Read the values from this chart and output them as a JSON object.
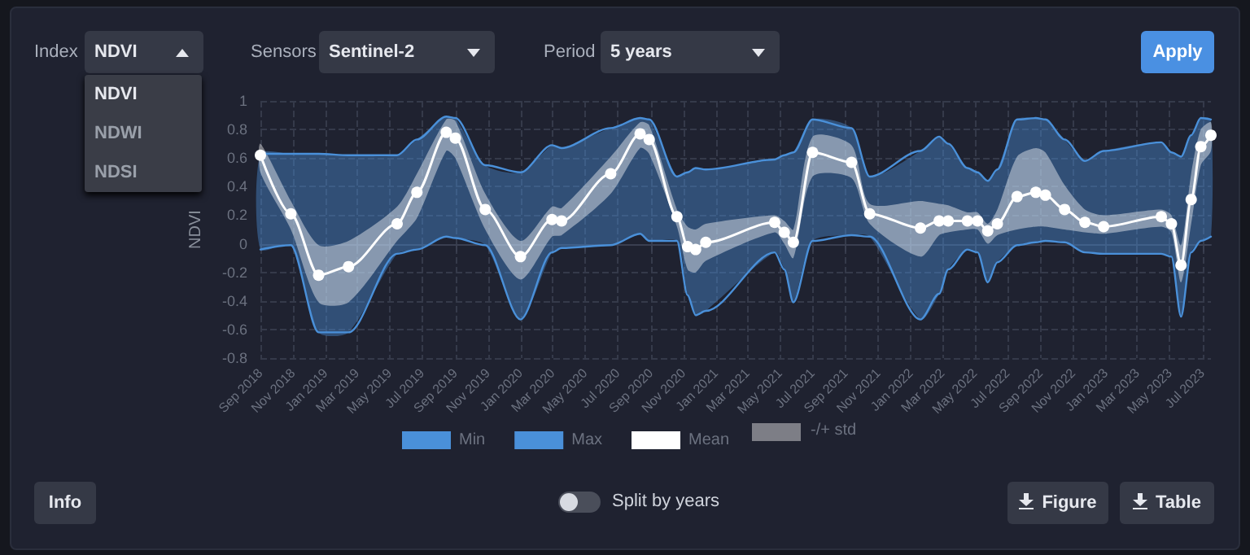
{
  "chart_data": {
    "type": "line",
    "ylabel": "NDVI",
    "x": [
      "2018-09-01",
      "2018-10-28",
      "2018-12-19",
      "2019-02-13",
      "2019-05-15",
      "2019-06-21",
      "2019-08-15",
      "2019-09-01",
      "2019-10-27",
      "2020-01-01",
      "2020-02-29",
      "2020-03-18",
      "2020-06-18",
      "2020-08-12",
      "2020-08-29",
      "2020-10-20",
      "2020-11-09",
      "2020-11-24",
      "2020-12-13",
      "2021-04-21",
      "2021-05-09",
      "2021-05-26",
      "2021-07-01",
      "2021-09-12",
      "2021-10-16",
      "2022-01-19",
      "2022-02-23",
      "2022-03-12",
      "2022-04-17",
      "2022-05-06",
      "2022-05-25",
      "2022-06-12",
      "2022-07-19",
      "2022-08-23",
      "2022-09-10",
      "2022-10-16",
      "2022-11-23",
      "2022-12-28",
      "2023-04-15",
      "2023-05-04",
      "2023-05-22",
      "2023-06-10",
      "2023-06-28",
      "2023-07-17"
    ],
    "series": [
      {
        "name": "Min",
        "marker": "none",
        "color": "#4a90d9",
        "values": [
          -0.04,
          -0.01,
          -0.62,
          -0.62,
          -0.07,
          -0.04,
          0.05,
          0.04,
          -0.01,
          -0.53,
          -0.06,
          -0.03,
          -0.01,
          0.07,
          0.02,
          0.02,
          -0.36,
          -0.5,
          -0.47,
          -0.06,
          -0.18,
          -0.41,
          0.02,
          0.06,
          0.05,
          -0.53,
          -0.35,
          -0.18,
          -0.04,
          -0.06,
          -0.27,
          -0.13,
          -0.01,
          0.01,
          0.02,
          0.01,
          -0.06,
          -0.07,
          -0.07,
          -0.09,
          -0.51,
          -0.06,
          0.02,
          0.05
        ]
      },
      {
        "name": "Max",
        "marker": "none",
        "color": "#4a90d9",
        "upper": [
          0.63,
          0.63,
          0.63,
          0.62,
          0.62,
          0.73,
          0.89,
          0.88,
          0.55,
          0.5,
          0.69,
          0.67,
          0.81,
          0.88,
          0.87,
          0.47,
          0.5,
          0.53,
          0.52,
          0.59,
          0.62,
          0.64,
          0.87,
          0.81,
          0.47,
          0.65,
          0.75,
          0.7,
          0.53,
          0.5,
          0.44,
          0.52,
          0.87,
          0.88,
          0.87,
          0.73,
          0.58,
          0.65,
          0.71,
          0.64,
          0.61,
          0.76,
          0.88,
          0.87
        ],
        "lower": [
          -0.04,
          -0.01,
          -0.62,
          -0.62,
          -0.07,
          -0.04,
          0.05,
          0.04,
          -0.01,
          -0.53,
          -0.06,
          -0.03,
          -0.01,
          0.07,
          0.02,
          0.02,
          -0.36,
          -0.5,
          -0.47,
          -0.06,
          -0.18,
          -0.41,
          0.02,
          0.06,
          0.05,
          -0.53,
          -0.35,
          -0.18,
          -0.04,
          -0.06,
          -0.27,
          -0.13,
          -0.01,
          0.01,
          0.02,
          0.01,
          -0.06,
          -0.07,
          -0.07,
          -0.09,
          -0.51,
          -0.06,
          0.02,
          0.05
        ],
        "values": [
          0.63,
          0.63,
          0.63,
          0.62,
          0.62,
          0.73,
          0.89,
          0.88,
          0.55,
          0.5,
          0.69,
          0.67,
          0.81,
          0.88,
          0.87,
          0.47,
          0.5,
          0.53,
          0.52,
          0.59,
          0.62,
          0.64,
          0.87,
          0.81,
          0.47,
          0.65,
          0.75,
          0.7,
          0.53,
          0.5,
          0.44,
          0.52,
          0.87,
          0.88,
          0.87,
          0.73,
          0.58,
          0.65,
          0.71,
          0.64,
          0.61,
          0.76,
          0.88,
          0.87
        ]
      },
      {
        "name": "Mean",
        "color": "#ffffff",
        "values": [
          0.62,
          0.21,
          -0.22,
          -0.16,
          0.14,
          0.36,
          0.78,
          0.74,
          0.24,
          -0.09,
          0.17,
          0.16,
          0.49,
          0.77,
          0.73,
          0.19,
          -0.02,
          -0.04,
          0.01,
          0.15,
          0.08,
          0.01,
          0.64,
          0.57,
          0.21,
          0.11,
          0.16,
          0.16,
          0.16,
          0.16,
          0.09,
          0.14,
          0.33,
          0.36,
          0.34,
          0.24,
          0.15,
          0.12,
          0.19,
          0.14,
          -0.15,
          0.31,
          0.68,
          0.76
        ],
        "upper": [
          0.7,
          0.3,
          -0.01,
          0.02,
          0.26,
          0.49,
          0.87,
          0.86,
          0.35,
          0.02,
          0.26,
          0.25,
          0.61,
          0.85,
          0.83,
          0.24,
          0.12,
          0.1,
          0.14,
          0.2,
          0.16,
          0.1,
          0.75,
          0.69,
          0.28,
          0.3,
          0.28,
          0.27,
          0.22,
          0.22,
          0.14,
          0.24,
          0.61,
          0.67,
          0.64,
          0.41,
          0.24,
          0.2,
          0.24,
          0.2,
          -0.01,
          0.49,
          0.8,
          0.85
        ],
        "lower": [
          0.5,
          0.1,
          -0.41,
          -0.41,
          0.02,
          0.18,
          0.65,
          0.6,
          0.1,
          -0.25,
          0.05,
          0.06,
          0.35,
          0.67,
          0.63,
          0.12,
          -0.18,
          -0.2,
          -0.12,
          0.08,
          0.0,
          -0.1,
          0.47,
          0.46,
          0.14,
          -0.09,
          0.06,
          0.08,
          0.1,
          0.1,
          0.0,
          0.06,
          0.1,
          0.12,
          0.12,
          0.1,
          0.08,
          0.07,
          0.12,
          0.08,
          -0.27,
          0.14,
          0.55,
          0.65
        ]
      }
    ],
    "xlim": [
      "2018-09-01",
      "2023-07-17"
    ],
    "xticks": [
      {
        "value": "2018-09-01",
        "label": "Sep 2018"
      },
      {
        "value": "2018-11-01",
        "label": "Nov 2018"
      },
      {
        "value": "2019-01-01",
        "label": "Jan 2019"
      },
      {
        "value": "2019-03-01",
        "label": "Mar 2019"
      },
      {
        "value": "2019-05-01",
        "label": "May 2019"
      },
      {
        "value": "2019-07-01",
        "label": "Jul 2019"
      },
      {
        "value": "2019-09-01",
        "label": "Sep 2019"
      },
      {
        "value": "2019-11-01",
        "label": "Nov 2019"
      },
      {
        "value": "2020-01-01",
        "label": "Jan 2020"
      },
      {
        "value": "2020-03-01",
        "label": "Mar 2020"
      },
      {
        "value": "2020-05-01",
        "label": "May 2020"
      },
      {
        "value": "2020-07-01",
        "label": "Jul 2020"
      },
      {
        "value": "2020-09-01",
        "label": "Sep 2020"
      },
      {
        "value": "2020-11-01",
        "label": "Nov 2020"
      },
      {
        "value": "2021-01-01",
        "label": "Jan 2021"
      },
      {
        "value": "2021-03-01",
        "label": "Mar 2021"
      },
      {
        "value": "2021-05-01",
        "label": "May 2021"
      },
      {
        "value": "2021-07-01",
        "label": "Jul 2021"
      },
      {
        "value": "2021-09-01",
        "label": "Sep 2021"
      },
      {
        "value": "2021-11-01",
        "label": "Nov 2021"
      },
      {
        "value": "2022-01-01",
        "label": "Jan 2022"
      },
      {
        "value": "2022-03-01",
        "label": "Mar 2022"
      },
      {
        "value": "2022-05-01",
        "label": "May 2022"
      },
      {
        "value": "2022-07-01",
        "label": "Jul 2022"
      },
      {
        "value": "2022-09-01",
        "label": "Sep 2022"
      },
      {
        "value": "2022-11-01",
        "label": "Nov 2022"
      },
      {
        "value": "2023-01-01",
        "label": "Jan 2023"
      },
      {
        "value": "2023-03-01",
        "label": "Mar 2023"
      },
      {
        "value": "2023-05-01",
        "label": "May 2023"
      },
      {
        "value": "2023-07-01",
        "label": "Jul 2023"
      }
    ],
    "ylim": [
      -0.8,
      1
    ],
    "yticks": [
      -0.8,
      -0.6,
      -0.4,
      -0.2,
      0,
      0.2,
      0.4,
      0.6,
      0.8,
      1
    ],
    "grid": true,
    "legend": "bottom",
    "marker": "circle",
    "annotations": [
      "Index",
      "NDVI",
      "Sensors",
      "Sentinel-2",
      "Period",
      "5 years",
      "Apply",
      "NDVI",
      "NDWI",
      "NDSI",
      "Info",
      "Split by years",
      "Figure",
      "Table",
      "-/+ std"
    ]
  }
}
